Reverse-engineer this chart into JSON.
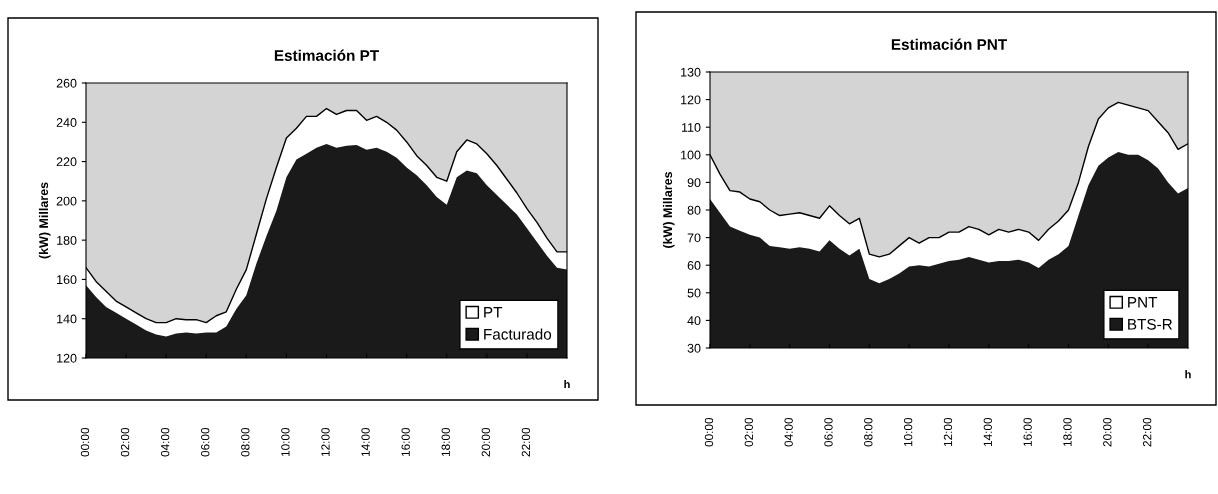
{
  "chart_data": [
    {
      "type": "area",
      "title": "Estimación PT",
      "ylabel": "(kW) Millares",
      "xlabel": "h",
      "x": [
        0,
        0.5,
        1,
        1.5,
        2,
        2.5,
        3,
        3.5,
        4,
        4.5,
        5,
        5.5,
        6,
        6.5,
        7,
        7.5,
        8,
        8.5,
        9,
        9.5,
        10,
        10.5,
        11,
        11.5,
        12,
        12.5,
        13,
        13.5,
        14,
        14.5,
        15,
        15.5,
        16,
        16.5,
        17,
        17.5,
        18,
        18.5,
        19,
        19.5,
        20,
        20.5,
        21,
        21.5,
        22,
        22.5,
        23,
        23.5,
        24
      ],
      "series": [
        {
          "name": "PT",
          "color": "#ffffff",
          "values": [
            166,
            159,
            154,
            149,
            146,
            143,
            140,
            138,
            138,
            140,
            139.5,
            139.5,
            138,
            141.5,
            143.5,
            155,
            165,
            183,
            201,
            217,
            232,
            237,
            243,
            243,
            247,
            244,
            246,
            246,
            241,
            243,
            240,
            236,
            230,
            223,
            218,
            212,
            210,
            225,
            231,
            229,
            224,
            218,
            211,
            204,
            196,
            189,
            181,
            174,
            174
          ]
        },
        {
          "name": "Facturado",
          "color": "#1a1a1a",
          "values": [
            157,
            151,
            146,
            143,
            140,
            137,
            134,
            132,
            131,
            132.5,
            133,
            132.5,
            133,
            133,
            136,
            145,
            152,
            168,
            182,
            195,
            212,
            221,
            224,
            227,
            229,
            227,
            228,
            228.5,
            226,
            227,
            225,
            222,
            217,
            213,
            208,
            202,
            198,
            212,
            215.5,
            214,
            208,
            203,
            198,
            193,
            186,
            179,
            172,
            166,
            165
          ]
        }
      ],
      "xlim": [
        0,
        24
      ],
      "xticks": [
        {
          "value": 0,
          "label": "00:00"
        },
        {
          "value": 2,
          "label": "02:00"
        },
        {
          "value": 4,
          "label": "04:00"
        },
        {
          "value": 6,
          "label": "06:00"
        },
        {
          "value": 8,
          "label": "08:00"
        },
        {
          "value": 10,
          "label": "10:00"
        },
        {
          "value": 12,
          "label": "12:00"
        },
        {
          "value": 14,
          "label": "14:00"
        },
        {
          "value": 16,
          "label": "16:00"
        },
        {
          "value": 18,
          "label": "18:00"
        },
        {
          "value": 20,
          "label": "20:00"
        },
        {
          "value": 22,
          "label": "22:00"
        }
      ],
      "ylim": [
        120,
        260
      ],
      "yticks": [
        120,
        140,
        160,
        180,
        200,
        220,
        240,
        260
      ],
      "legend": "bottom right",
      "grid": false
    },
    {
      "type": "area",
      "title": "Estimación PNT",
      "ylabel": "(kW) Millares",
      "xlabel": "h",
      "x": [
        0,
        0.5,
        1,
        1.5,
        2,
        2.5,
        3,
        3.5,
        4,
        4.5,
        5,
        5.5,
        6,
        6.5,
        7,
        7.5,
        8,
        8.5,
        9,
        9.5,
        10,
        10.5,
        11,
        11.5,
        12,
        12.5,
        13,
        13.5,
        14,
        14.5,
        15,
        15.5,
        16,
        16.5,
        17,
        17.5,
        18,
        18.5,
        19,
        19.5,
        20,
        20.5,
        21,
        21.5,
        22,
        22.5,
        23,
        23.5,
        24
      ],
      "series": [
        {
          "name": "PNT",
          "color": "#ffffff",
          "values": [
            100,
            93,
            87,
            86.5,
            84,
            83,
            80,
            78,
            78.5,
            79,
            78,
            77,
            81.5,
            78,
            75,
            77,
            64,
            63,
            64,
            67,
            70,
            68,
            70,
            70,
            72,
            72,
            74,
            73,
            71,
            73,
            72,
            73,
            72,
            69,
            73,
            76,
            80,
            90,
            103,
            113,
            117,
            119,
            118,
            117,
            116,
            112,
            108,
            102,
            104
          ]
        },
        {
          "name": "BTS-R",
          "color": "#1a1a1a",
          "values": [
            84,
            79,
            74,
            72.5,
            71,
            70,
            67,
            66.5,
            66,
            66.5,
            66,
            65,
            69,
            66,
            63.5,
            66,
            55,
            53.5,
            55,
            57,
            59.5,
            60,
            59.5,
            60.5,
            61.5,
            62,
            63,
            62,
            61,
            61.5,
            61.5,
            62,
            61,
            59,
            62,
            64,
            67,
            78,
            89,
            96,
            99,
            101,
            100,
            100,
            98,
            95,
            90,
            86,
            88
          ]
        }
      ],
      "xlim": [
        0,
        24
      ],
      "xticks": [
        {
          "value": 0,
          "label": "00:00"
        },
        {
          "value": 2,
          "label": "02:00"
        },
        {
          "value": 4,
          "label": "04:00"
        },
        {
          "value": 6,
          "label": "06:00"
        },
        {
          "value": 8,
          "label": "08:00"
        },
        {
          "value": 10,
          "label": "10:00"
        },
        {
          "value": 12,
          "label": "12:00"
        },
        {
          "value": 14,
          "label": "14:00"
        },
        {
          "value": 16,
          "label": "16:00"
        },
        {
          "value": 18,
          "label": "18:00"
        },
        {
          "value": 20,
          "label": "20:00"
        },
        {
          "value": 22,
          "label": "22:00"
        }
      ],
      "ylim": [
        30,
        130
      ],
      "yticks": [
        30,
        40,
        50,
        60,
        70,
        80,
        90,
        100,
        110,
        120,
        130
      ],
      "legend": "bottom right",
      "grid": false
    }
  ]
}
